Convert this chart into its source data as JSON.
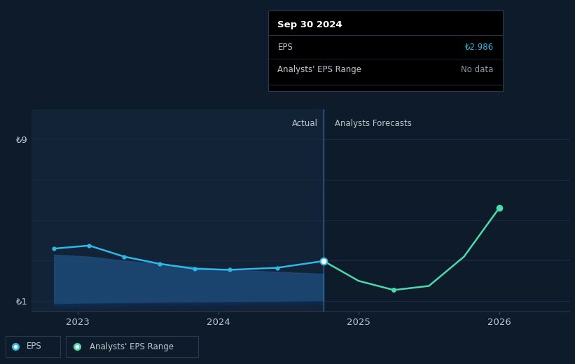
{
  "bg_color": "#0d1b2a",
  "plot_bg_color": "#0d1b2a",
  "grid_color": "#1e3050",
  "text_color": "#c0c8d0",
  "ylim": [
    0.5,
    10.5
  ],
  "y_tick_labels": [
    "₺1",
    "₺9"
  ],
  "actual_label": "Actual",
  "forecast_label": "Analysts Forecasts",
  "eps_color": "#2eb8e6",
  "forecast_color": "#4dd9ac",
  "range_color_top": "#1a4a7a",
  "range_color_mid": "#0f3060",
  "actual_x": [
    2022.83,
    2023.08,
    2023.33,
    2023.58,
    2023.83,
    2024.08,
    2024.42,
    2024.75
  ],
  "actual_y": [
    3.6,
    3.75,
    3.2,
    2.85,
    2.6,
    2.55,
    2.65,
    2.986
  ],
  "forecast_x": [
    2024.75,
    2025.0,
    2025.25,
    2025.5,
    2025.75,
    2026.0
  ],
  "forecast_y": [
    2.986,
    2.0,
    1.55,
    1.75,
    3.2,
    5.6
  ],
  "range_x": [
    2022.83,
    2023.08,
    2023.33,
    2023.58,
    2023.83,
    2024.08,
    2024.42,
    2024.75
  ],
  "range_top": [
    3.3,
    3.2,
    3.0,
    2.85,
    2.7,
    2.55,
    2.45,
    2.35
  ],
  "range_bot": [
    0.85,
    0.88,
    0.9,
    0.92,
    0.93,
    0.95,
    0.97,
    1.0
  ],
  "divider_x": 2024.75,
  "x_min": 2022.67,
  "x_max": 2026.5,
  "tooltip_title": "Sep 30 2024",
  "tooltip_eps_label": "EPS",
  "tooltip_eps_value": "₺2.986",
  "tooltip_eps_color": "#2eb8e6",
  "tooltip_range_label": "Analysts' EPS Range",
  "tooltip_range_value": "No data",
  "tooltip_range_color": "#8899aa",
  "tooltip_bg": "#000000",
  "tooltip_border": "#2a3a4a",
  "legend_eps_label": "EPS",
  "legend_range_label": "Analysts' EPS Range",
  "legend_border": "#2a3a4a"
}
